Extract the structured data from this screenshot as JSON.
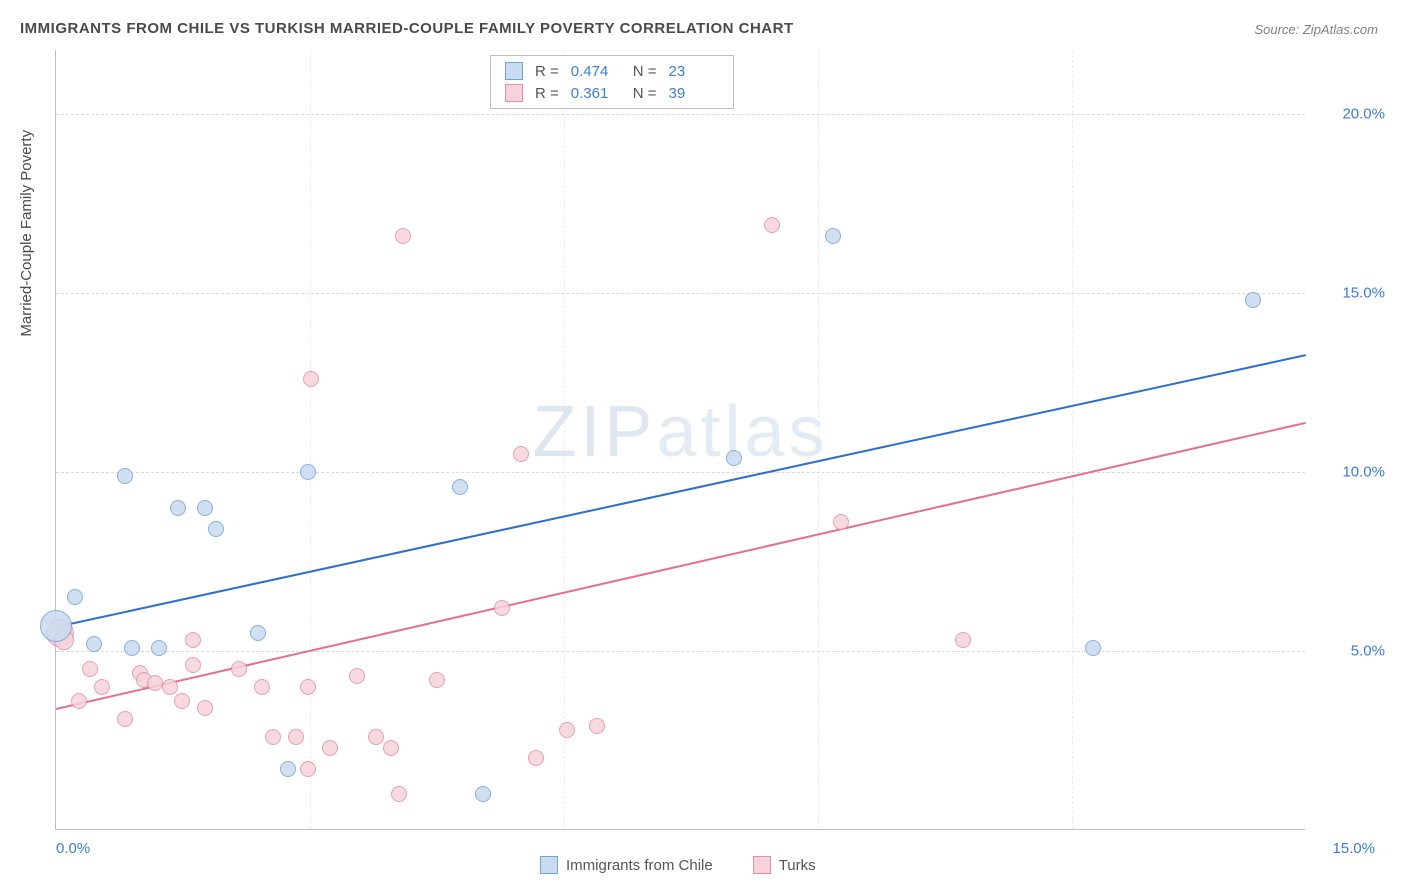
{
  "title": "IMMIGRANTS FROM CHILE VS TURKISH MARRIED-COUPLE FAMILY POVERTY CORRELATION CHART",
  "source_label": "Source: ",
  "source_name": "ZipAtlas.com",
  "watermark": "ZIPatlas",
  "ylabel": "Married-Couple Family Poverty",
  "chart": {
    "type": "scatter",
    "background_color": "#ffffff",
    "grid_color": "#d9d9d9",
    "axis_color": "#bfbfbf",
    "tick_color": "#3b7dd8",
    "xlim": [
      0,
      16.4
    ],
    "ylim": [
      0,
      21.8
    ],
    "yticks": [
      {
        "v": 5.0,
        "label": "5.0%"
      },
      {
        "v": 10.0,
        "label": "10.0%"
      },
      {
        "v": 15.0,
        "label": "15.0%"
      },
      {
        "v": 20.0,
        "label": "20.0%"
      }
    ],
    "xticks": [
      {
        "v": 0.0,
        "label": "0.0%"
      },
      {
        "v": 15.0,
        "label": "15.0%"
      }
    ],
    "x_gridlines": [
      3.33,
      6.66,
      10.0,
      13.33
    ],
    "series": [
      {
        "name": "Immigrants from Chile",
        "marker": "circle",
        "fill": "#c9dbef",
        "stroke": "#6fa3da",
        "radius": 8,
        "line_color": "#2f6fd0",
        "r_value": "0.474",
        "n_value": "23",
        "trend": {
          "x1": 0.0,
          "y1": 5.7,
          "x2": 16.4,
          "y2": 13.3
        },
        "points": [
          [
            0.0,
            5.7,
            16
          ],
          [
            0.25,
            6.5,
            8
          ],
          [
            0.5,
            5.2,
            8
          ],
          [
            0.9,
            9.9,
            8
          ],
          [
            1.0,
            5.1,
            8
          ],
          [
            1.35,
            5.1,
            8
          ],
          [
            1.6,
            9.0,
            8
          ],
          [
            1.95,
            9.0,
            8
          ],
          [
            2.1,
            8.4,
            8
          ],
          [
            2.65,
            5.5,
            8
          ],
          [
            3.05,
            1.7,
            8
          ],
          [
            3.3,
            10.0,
            8
          ],
          [
            5.3,
            9.6,
            8
          ],
          [
            5.6,
            1.0,
            8
          ],
          [
            8.9,
            10.4,
            8
          ],
          [
            10.2,
            16.6,
            8
          ],
          [
            13.6,
            5.1,
            8
          ],
          [
            15.7,
            14.8,
            8
          ]
        ]
      },
      {
        "name": "Turks",
        "marker": "circle",
        "fill": "#f6d3db",
        "stroke": "#e58fa6",
        "radius": 8,
        "line_color": "#e56f8f",
        "r_value": "0.361",
        "n_value": "39",
        "trend": {
          "x1": 0.0,
          "y1": 3.4,
          "x2": 16.4,
          "y2": 11.4
        },
        "points": [
          [
            0.05,
            5.5,
            14
          ],
          [
            0.1,
            5.3,
            10
          ],
          [
            0.3,
            3.6,
            8
          ],
          [
            0.45,
            4.5,
            8
          ],
          [
            0.6,
            4.0,
            8
          ],
          [
            0.9,
            3.1,
            8
          ],
          [
            1.1,
            4.4,
            8
          ],
          [
            1.15,
            4.2,
            8
          ],
          [
            1.3,
            4.1,
            8
          ],
          [
            1.5,
            4.0,
            8
          ],
          [
            1.65,
            3.6,
            8
          ],
          [
            1.8,
            4.6,
            8
          ],
          [
            1.8,
            5.3,
            8
          ],
          [
            1.95,
            3.4,
            8
          ],
          [
            2.4,
            4.5,
            8
          ],
          [
            2.7,
            4.0,
            8
          ],
          [
            2.85,
            2.6,
            8
          ],
          [
            3.15,
            2.6,
            8
          ],
          [
            3.3,
            1.7,
            8
          ],
          [
            3.3,
            4.0,
            8
          ],
          [
            3.35,
            12.6,
            8
          ],
          [
            3.6,
            2.3,
            8
          ],
          [
            3.95,
            4.3,
            8
          ],
          [
            4.2,
            2.6,
            8
          ],
          [
            4.4,
            2.3,
            8
          ],
          [
            4.5,
            1.0,
            8
          ],
          [
            4.55,
            16.6,
            8
          ],
          [
            5.0,
            4.2,
            8
          ],
          [
            5.85,
            6.2,
            8
          ],
          [
            6.1,
            10.5,
            8
          ],
          [
            6.3,
            2.0,
            8
          ],
          [
            6.7,
            2.8,
            8
          ],
          [
            7.1,
            2.9,
            8
          ],
          [
            9.4,
            16.9,
            8
          ],
          [
            10.3,
            8.6,
            8
          ],
          [
            11.9,
            5.3,
            8
          ]
        ]
      }
    ]
  },
  "stat_legend_labels": {
    "r": "R =",
    "n": "N ="
  },
  "bottom_legend": [
    {
      "swatch_fill": "#c9dbef",
      "swatch_stroke": "#6fa3da",
      "key": "chart.series.0.name"
    },
    {
      "swatch_fill": "#f6d3db",
      "swatch_stroke": "#e58fa6",
      "key": "chart.series.1.name"
    }
  ]
}
